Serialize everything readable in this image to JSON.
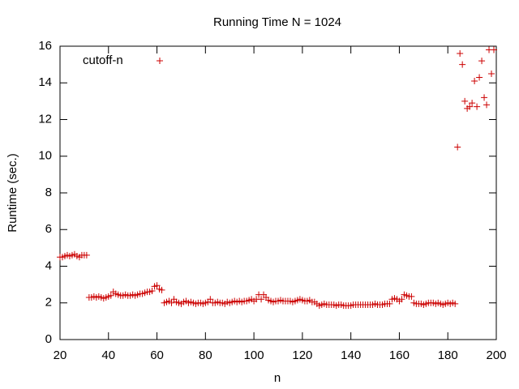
{
  "chart_data": {
    "type": "scatter",
    "title": "Running Time N = 1024",
    "xlabel": "n",
    "ylabel": "Runtime (sec.)",
    "xlim": [
      20,
      200
    ],
    "ylim": [
      0,
      16
    ],
    "xticks": [
      20,
      40,
      60,
      80,
      100,
      120,
      140,
      160,
      180,
      200
    ],
    "yticks": [
      0,
      2,
      4,
      6,
      8,
      10,
      12,
      14,
      16
    ],
    "grid": false,
    "legend": "top-left",
    "series": [
      {
        "name": "cutoff-n",
        "color": "#cc0000",
        "x": [
          20,
          21,
          22,
          23,
          24,
          25,
          26,
          27,
          28,
          29,
          30,
          31,
          32,
          33,
          34,
          35,
          36,
          37,
          38,
          39,
          40,
          41,
          42,
          43,
          44,
          45,
          46,
          47,
          48,
          49,
          50,
          51,
          52,
          53,
          54,
          55,
          56,
          57,
          58,
          59,
          60,
          61,
          62,
          63,
          64,
          65,
          66,
          67,
          68,
          69,
          70,
          71,
          72,
          73,
          74,
          75,
          76,
          77,
          78,
          79,
          80,
          81,
          82,
          83,
          84,
          85,
          86,
          87,
          88,
          89,
          90,
          91,
          92,
          93,
          94,
          95,
          96,
          97,
          98,
          99,
          100,
          101,
          102,
          103,
          104,
          105,
          106,
          107,
          108,
          109,
          110,
          111,
          112,
          113,
          114,
          115,
          116,
          117,
          118,
          119,
          120,
          121,
          122,
          123,
          124,
          125,
          126,
          127,
          128,
          129,
          130,
          131,
          132,
          133,
          134,
          135,
          136,
          137,
          138,
          139,
          140,
          141,
          142,
          143,
          144,
          145,
          146,
          147,
          148,
          149,
          150,
          151,
          152,
          153,
          154,
          155,
          156,
          157,
          158,
          159,
          160,
          161,
          162,
          163,
          164,
          165,
          166,
          167,
          168,
          169,
          170,
          171,
          172,
          173,
          174,
          175,
          176,
          177,
          178,
          179,
          180,
          181,
          182,
          183,
          184,
          185,
          186,
          187,
          188,
          189,
          190,
          191,
          192,
          193,
          194,
          195,
          196,
          197,
          198,
          199
        ],
        "values": [
          4.5,
          4.5,
          4.55,
          4.6,
          4.55,
          4.6,
          4.65,
          4.55,
          4.5,
          4.6,
          4.6,
          4.6,
          2.3,
          2.3,
          2.35,
          2.3,
          2.35,
          2.3,
          2.25,
          2.3,
          2.35,
          2.4,
          2.6,
          2.5,
          2.45,
          2.4,
          2.4,
          2.45,
          2.4,
          2.4,
          2.45,
          2.4,
          2.45,
          2.5,
          2.5,
          2.55,
          2.6,
          2.6,
          2.65,
          2.9,
          2.95,
          2.75,
          2.7,
          2.0,
          2.05,
          2.1,
          2.0,
          2.2,
          2.05,
          2.0,
          1.95,
          2.05,
          2.1,
          2.0,
          2.05,
          2.0,
          1.95,
          2.0,
          2.0,
          1.95,
          2.0,
          2.05,
          2.2,
          2.0,
          2.0,
          2.05,
          2.0,
          2.0,
          1.95,
          2.05,
          2.0,
          2.05,
          2.1,
          2.05,
          2.1,
          2.05,
          2.1,
          2.1,
          2.15,
          2.2,
          2.1,
          2.2,
          2.45,
          2.2,
          2.45,
          2.3,
          2.15,
          2.1,
          2.05,
          2.1,
          2.1,
          2.15,
          2.1,
          2.1,
          2.1,
          2.1,
          2.05,
          2.1,
          2.15,
          2.2,
          2.15,
          2.1,
          2.1,
          2.15,
          2.05,
          2.05,
          1.95,
          1.85,
          1.9,
          1.95,
          1.9,
          1.9,
          1.9,
          1.9,
          1.85,
          1.9,
          1.9,
          1.85,
          1.85,
          1.85,
          1.85,
          1.9,
          1.9,
          1.9,
          1.9,
          1.9,
          1.9,
          1.9,
          1.9,
          1.9,
          1.95,
          1.9,
          1.9,
          1.9,
          1.95,
          1.95,
          1.95,
          2.2,
          2.25,
          2.2,
          2.1,
          2.2,
          2.45,
          2.4,
          2.35,
          2.35,
          2.0,
          1.95,
          1.95,
          1.95,
          1.9,
          1.95,
          2.0,
          2.0,
          2.0,
          1.95,
          2.0,
          1.95,
          1.9,
          1.95,
          2.0,
          1.95,
          2.0,
          1.95,
          10.5,
          15.6,
          15.0,
          13.0,
          12.6,
          12.7,
          12.9,
          14.1,
          12.7,
          14.3,
          15.2,
          13.2,
          12.8,
          15.8,
          14.5,
          15.8
        ]
      }
    ]
  }
}
